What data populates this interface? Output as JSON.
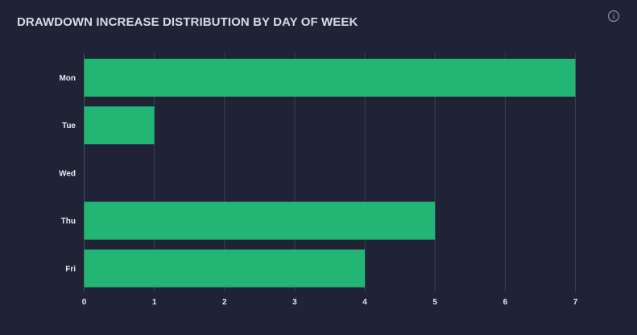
{
  "header": {
    "title": "DRAWDOWN INCREASE DISTRIBUTION BY DAY OF WEEK",
    "info_icon": "info-circle-icon"
  },
  "colors": {
    "background": "#202336",
    "bar": "#22b573",
    "grid": "#3a3e52",
    "text": "#e6e8ef"
  },
  "chart_data": {
    "type": "bar",
    "orientation": "horizontal",
    "title": "DRAWDOWN INCREASE DISTRIBUTION BY DAY OF WEEK",
    "categories": [
      "Mon",
      "Tue",
      "Wed",
      "Thu",
      "Fri"
    ],
    "values": [
      7,
      1,
      0,
      5,
      4
    ],
    "xlabel": "",
    "ylabel": "",
    "xlim": [
      0,
      7
    ],
    "xticks": [
      "0",
      "1",
      "2",
      "3",
      "4",
      "5",
      "6",
      "7"
    ],
    "grid": "vertical",
    "legend": "none"
  }
}
